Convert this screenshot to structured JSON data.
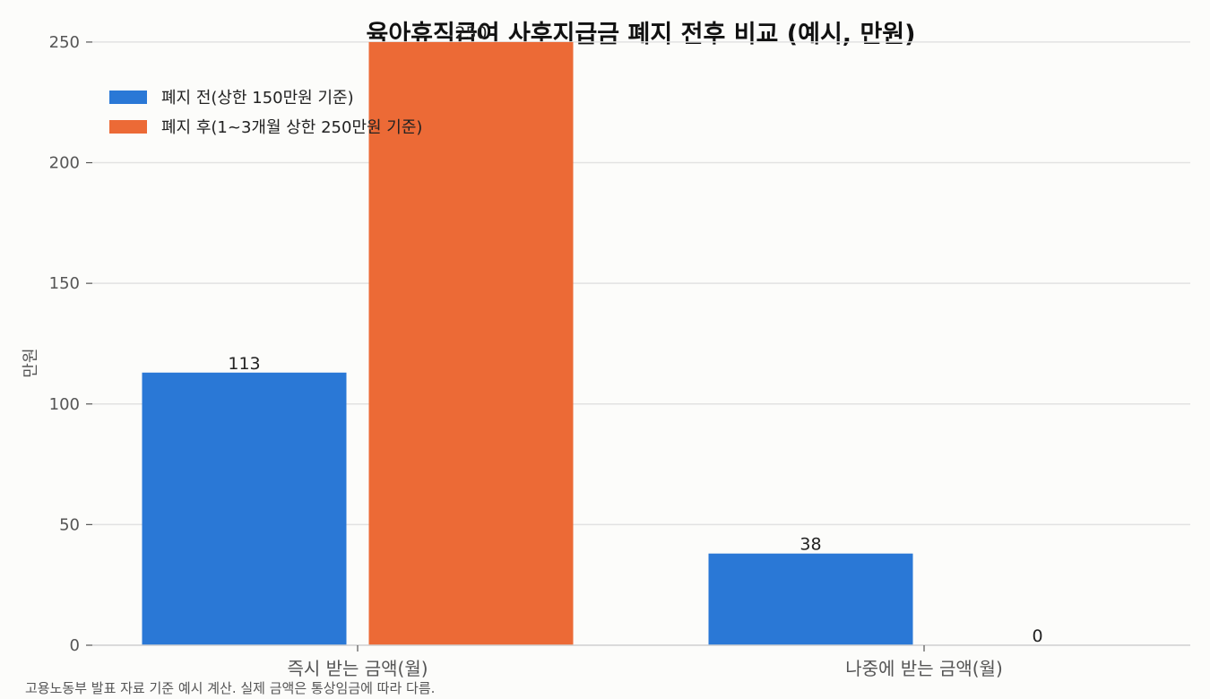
{
  "chart_data": {
    "type": "bar",
    "title": "육아휴직급여 사후지급금 폐지 전후 비교 (예시, 만원)",
    "ylabel": "만원",
    "xlabel": "",
    "categories": [
      "즉시 받는 금액(월)",
      "나중에 받는 금액(월)"
    ],
    "series": [
      {
        "name": "폐지 전(상한 150만원 기준)",
        "values": [
          113,
          38
        ],
        "color": "#2a78d6"
      },
      {
        "name": "폐지 후(1~3개월 상한 250만원 기준)",
        "values": [
          250,
          0
        ],
        "color": "#ec6a36"
      }
    ],
    "ylim": [
      0,
      260
    ],
    "yticks": [
      0,
      50,
      100,
      150,
      200,
      250
    ],
    "grid": "horizontal",
    "legend": "top-left",
    "footnote": "고용노동부 발표 자료 기준 예시 계산. 실제 금액은 통상임금에 따라 다름."
  }
}
